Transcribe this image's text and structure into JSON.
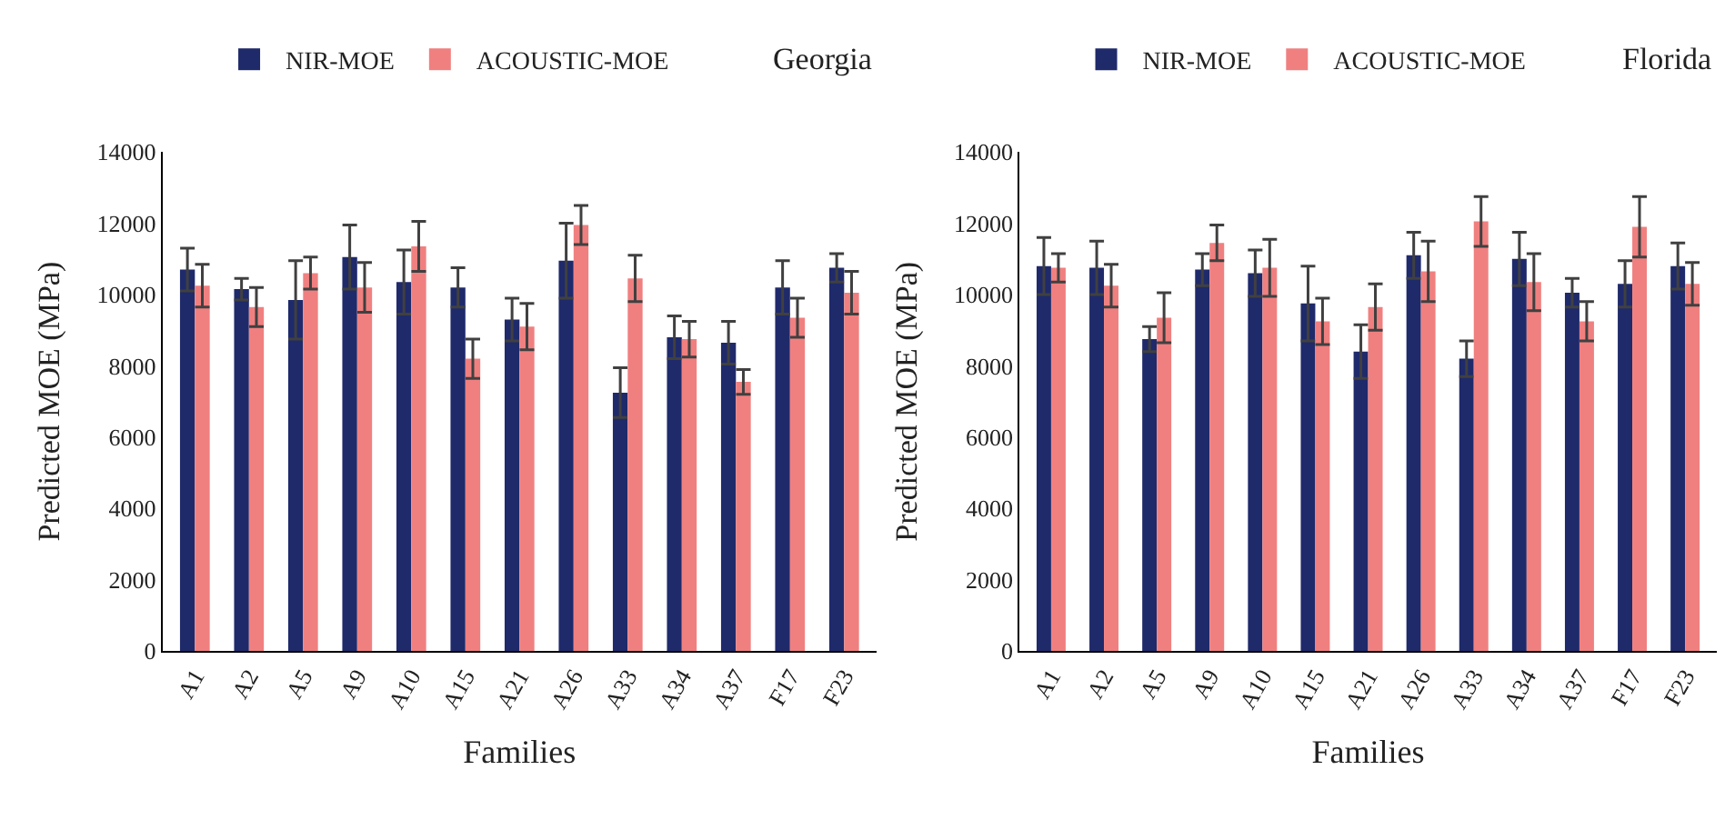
{
  "chart_data": [
    {
      "type": "bar",
      "title": "Georgia",
      "xlabel": "Families",
      "ylabel": "Predicted MOE (MPa)",
      "categories": [
        "A1",
        "A2",
        "A5",
        "A9",
        "A10",
        "A15",
        "A21",
        "A26",
        "A33",
        "A34",
        "A37",
        "F17",
        "F23"
      ],
      "ylim": [
        0,
        14000
      ],
      "yticks": [
        0,
        2000,
        4000,
        6000,
        8000,
        10000,
        12000,
        14000
      ],
      "legend": "top",
      "series": [
        {
          "name": "NIR-MOE",
          "color": "#1f2a6b",
          "values": [
            10700,
            10150,
            9850,
            11050,
            10350,
            10200,
            9300,
            10950,
            7250,
            8800,
            8650,
            10200,
            10750
          ],
          "errors": [
            600,
            300,
            1100,
            900,
            900,
            550,
            600,
            1050,
            700,
            600,
            600,
            750,
            400
          ]
        },
        {
          "name": "ACOUSTIC-MOE",
          "color": "#f08080",
          "values": [
            10250,
            9650,
            10600,
            10200,
            11350,
            8200,
            9100,
            11950,
            10450,
            8750,
            7550,
            9350,
            10050
          ],
          "errors": [
            600,
            550,
            450,
            700,
            700,
            550,
            650,
            550,
            650,
            500,
            350,
            550,
            600
          ]
        }
      ]
    },
    {
      "type": "bar",
      "title": "Florida",
      "xlabel": "Families",
      "ylabel": "Predicted MOE (MPa)",
      "categories": [
        "A1",
        "A2",
        "A5",
        "A9",
        "A10",
        "A15",
        "A21",
        "A26",
        "A33",
        "A34",
        "A37",
        "F17",
        "F23"
      ],
      "ylim": [
        0,
        14000
      ],
      "yticks": [
        0,
        2000,
        4000,
        6000,
        8000,
        10000,
        12000,
        14000
      ],
      "legend": "top",
      "series": [
        {
          "name": "NIR-MOE",
          "color": "#1f2a6b",
          "values": [
            10800,
            10750,
            8750,
            10700,
            10600,
            9750,
            8400,
            11100,
            8200,
            11000,
            10050,
            10300,
            10800
          ],
          "errors": [
            800,
            750,
            350,
            450,
            650,
            1050,
            750,
            650,
            500,
            750,
            400,
            650,
            650
          ]
        },
        {
          "name": "ACOUSTIC-MOE",
          "color": "#f08080",
          "values": [
            10750,
            10250,
            9350,
            11450,
            10750,
            9250,
            9650,
            10650,
            12050,
            10350,
            9250,
            11900,
            10300
          ],
          "errors": [
            400,
            600,
            700,
            500,
            800,
            650,
            650,
            850,
            700,
            800,
            550,
            850,
            600
          ]
        }
      ]
    }
  ]
}
